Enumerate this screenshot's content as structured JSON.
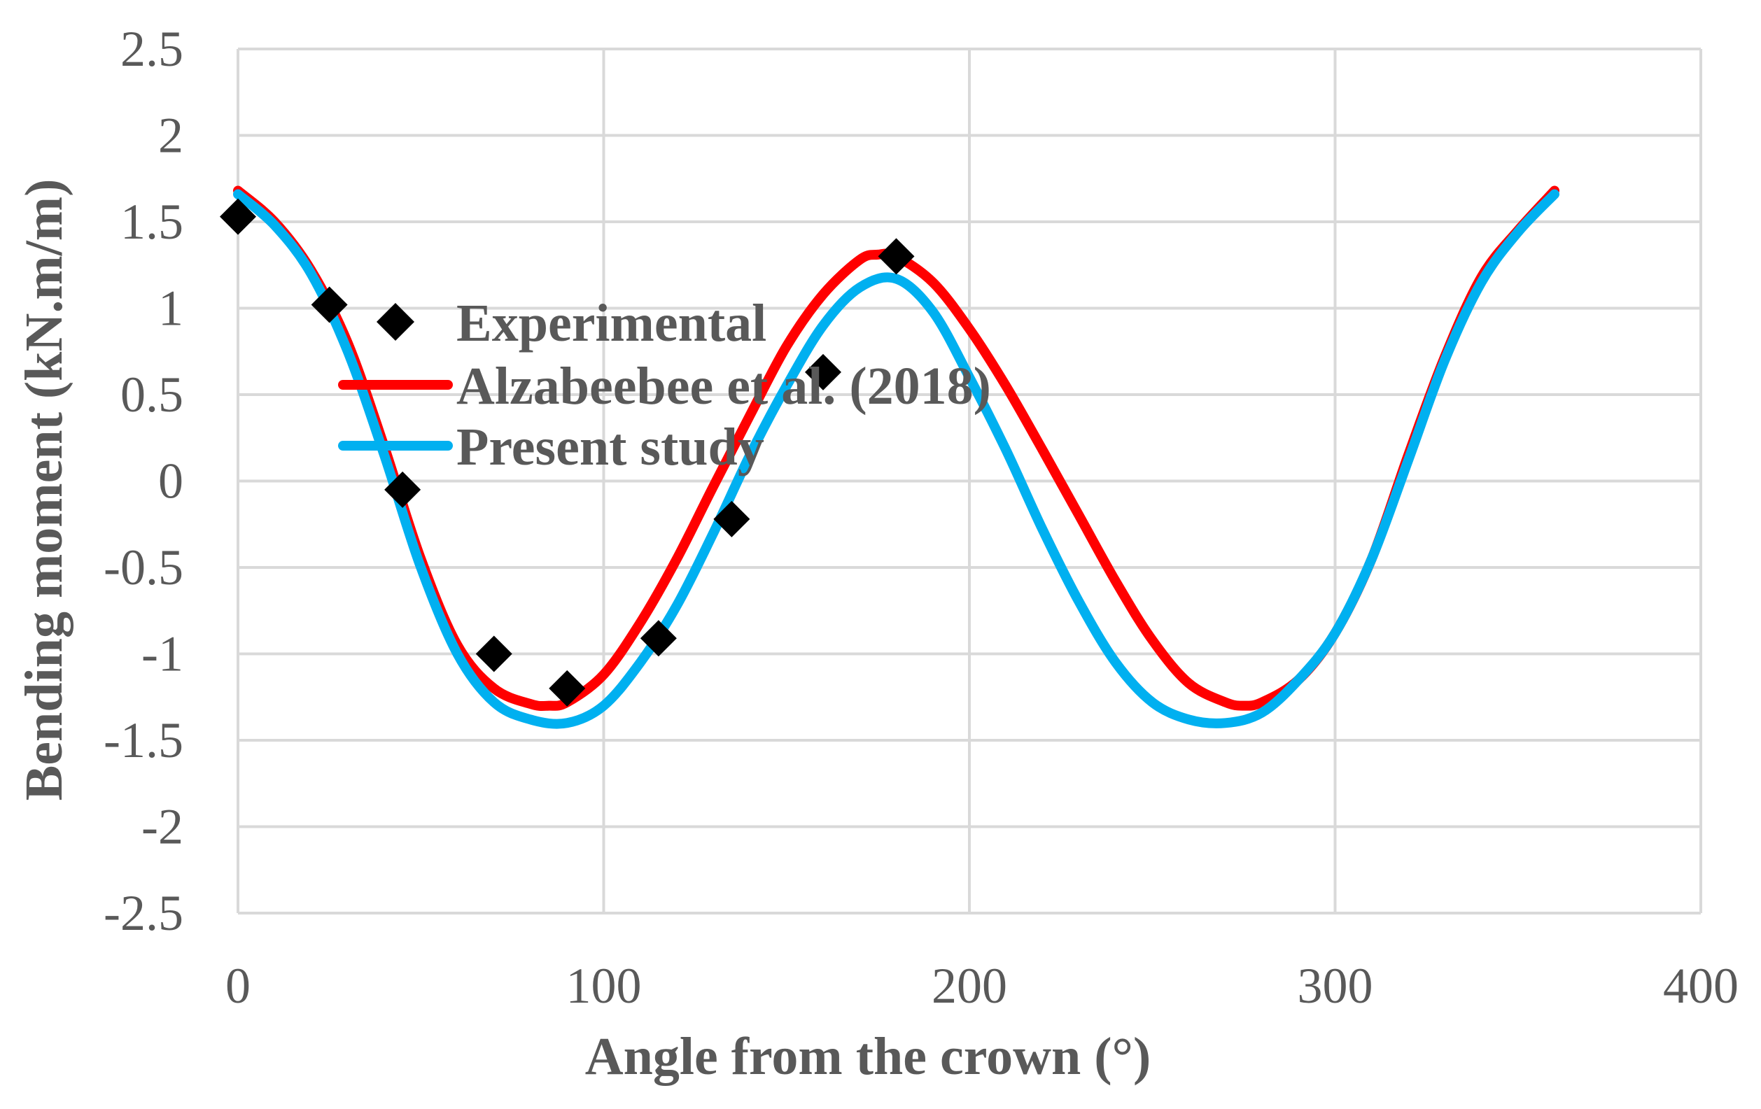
{
  "chart_data": {
    "type": "line",
    "title": "",
    "xlabel": "Angle from the crown (°)",
    "ylabel": "Bending moment (kN.m/m)",
    "xlim": [
      0,
      400
    ],
    "ylim": [
      -2.5,
      2.5
    ],
    "xticks": [
      0,
      100,
      200,
      300,
      400
    ],
    "xtick_labels": [
      "0",
      "100",
      "200",
      "300",
      "400"
    ],
    "yticks": [
      2.5,
      2,
      1.5,
      1,
      0.5,
      0,
      -0.5,
      -1,
      -1.5,
      -2,
      -2.5
    ],
    "ytick_labels": [
      "2.5",
      "2",
      "1.5",
      "1",
      "0.5",
      "0",
      "-0.5",
      "-1",
      "-1.5",
      "-2",
      "-2.5"
    ],
    "grid": true,
    "legend_position": "top-left",
    "series": [
      {
        "name": "Experimental",
        "kind": "scatter",
        "marker": "diamond",
        "color": "#000000",
        "x": [
          0,
          25,
          45,
          70,
          90,
          115,
          135,
          160,
          180
        ],
        "y": [
          1.53,
          1.02,
          -0.05,
          -1.0,
          -1.2,
          -0.91,
          -0.22,
          0.63,
          1.3
        ]
      },
      {
        "name": "Alzabeebee et al. (2018)",
        "kind": "line",
        "color": "#ff0000",
        "x": [
          0,
          10,
          20,
          30,
          40,
          50,
          60,
          70,
          80,
          85,
          90,
          100,
          110,
          120,
          130,
          140,
          150,
          160,
          170,
          175,
          180,
          190,
          200,
          210,
          220,
          230,
          240,
          250,
          260,
          270,
          275,
          280,
          290,
          300,
          310,
          320,
          330,
          340,
          350,
          360
        ],
        "y": [
          1.68,
          1.5,
          1.22,
          0.8,
          0.2,
          -0.45,
          -0.95,
          -1.2,
          -1.29,
          -1.3,
          -1.28,
          -1.12,
          -0.82,
          -0.45,
          -0.03,
          0.38,
          0.78,
          1.08,
          1.28,
          1.31,
          1.3,
          1.15,
          0.88,
          0.55,
          0.18,
          -0.2,
          -0.58,
          -0.92,
          -1.17,
          -1.28,
          -1.3,
          -1.28,
          -1.15,
          -0.88,
          -0.45,
          0.15,
          0.72,
          1.18,
          1.45,
          1.68
        ]
      },
      {
        "name": "Present study",
        "kind": "line",
        "color": "#00b0f0",
        "x": [
          0,
          10,
          20,
          30,
          40,
          50,
          60,
          70,
          80,
          90,
          100,
          110,
          120,
          130,
          140,
          150,
          160,
          170,
          180,
          190,
          200,
          210,
          220,
          230,
          240,
          250,
          260,
          270,
          280,
          290,
          300,
          310,
          320,
          330,
          340,
          350,
          360
        ],
        "y": [
          1.66,
          1.48,
          1.2,
          0.75,
          0.15,
          -0.5,
          -1.0,
          -1.28,
          -1.38,
          -1.4,
          -1.3,
          -1.05,
          -0.72,
          -0.3,
          0.15,
          0.55,
          0.9,
          1.12,
          1.17,
          0.98,
          0.6,
          0.18,
          -0.28,
          -0.7,
          -1.05,
          -1.28,
          -1.38,
          -1.4,
          -1.34,
          -1.15,
          -0.88,
          -0.45,
          0.12,
          0.7,
          1.15,
          1.44,
          1.66
        ]
      }
    ]
  }
}
